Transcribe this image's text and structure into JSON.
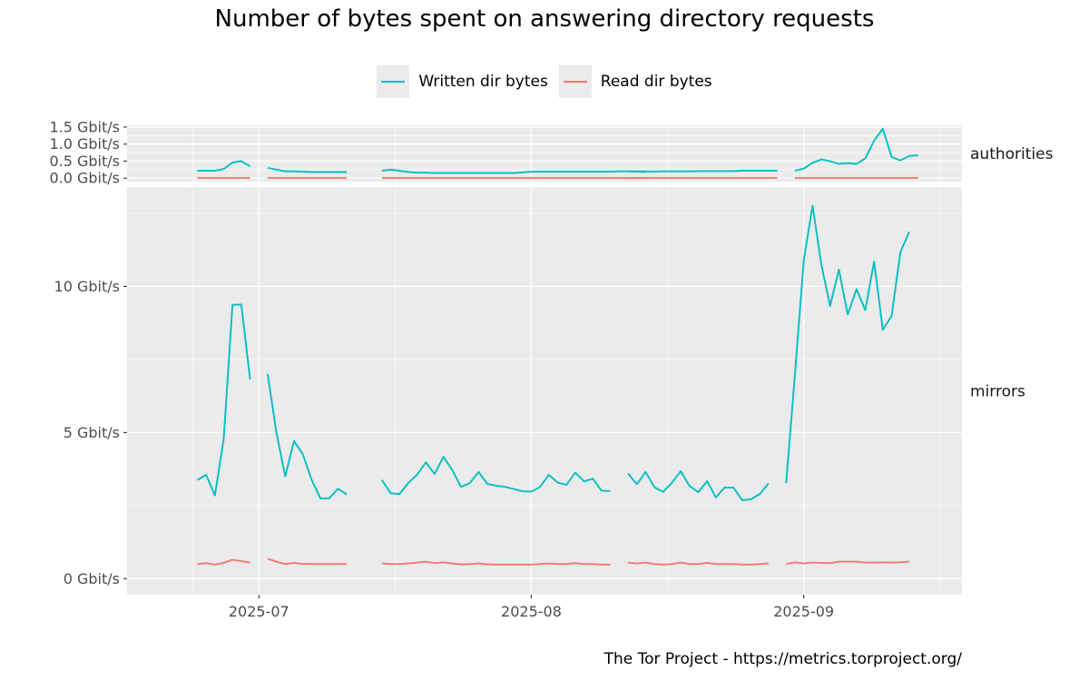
{
  "title": "Number of bytes spent on answering directory requests",
  "caption": "The Tor Project - https://metrics.torproject.org/",
  "legend": {
    "written_label": "Written dir bytes",
    "read_label": "Read dir bytes",
    "written_color": "#00bfc4",
    "read_color": "#f8766d"
  },
  "chart_data": {
    "type": "line",
    "x_type": "date",
    "x_ticks": [
      "2025-07-01",
      "2025-08-01",
      "2025-09-01"
    ],
    "x_tick_labels": [
      "2025-07",
      "2025-08",
      "2025-09"
    ],
    "xlim": [
      "2025-06-16",
      "2025-09-19"
    ],
    "colors": {
      "Written dir bytes": "#00bfc4",
      "Read dir bytes": "#f8766d"
    },
    "panels": [
      {
        "name": "authorities",
        "ylim": [
          -0.1,
          1.55
        ],
        "y_ticks": [
          0,
          0.5,
          1.0,
          1.5
        ],
        "y_tick_labels": [
          "0.0 Gbit/s",
          "0.5 Gbit/s",
          "1.0 Gbit/s",
          "1.5 Gbit/s"
        ],
        "series": [
          {
            "name": "Written dir bytes",
            "segments": [
              {
                "start": "2025-06-24",
                "values": [
                  0.22,
                  0.22,
                  0.22,
                  0.27,
                  0.46,
                  0.5,
                  0.35
                ]
              },
              {
                "start": "2025-07-02",
                "values": [
                  0.3,
                  0.25,
                  0.2,
                  0.2,
                  0.19,
                  0.18,
                  0.18,
                  0.18,
                  0.18,
                  0.18
                ]
              },
              {
                "start": "2025-07-15",
                "values": [
                  0.22,
                  0.25,
                  0.22,
                  0.18,
                  0.16,
                  0.16,
                  0.15,
                  0.15,
                  0.15,
                  0.15,
                  0.15,
                  0.15,
                  0.15,
                  0.15,
                  0.15,
                  0.15,
                  0.17,
                  0.19,
                  0.19,
                  0.19,
                  0.19,
                  0.19,
                  0.19,
                  0.19,
                  0.19,
                  0.19,
                  0.19,
                  0.2,
                  0.2,
                  0.19,
                  0.18
                ]
              },
              {
                "start": "2025-08-12",
                "values": [
                  0.2,
                  0.2,
                  0.2,
                  0.19,
                  0.2,
                  0.2,
                  0.2,
                  0.2,
                  0.21,
                  0.21,
                  0.21,
                  0.21,
                  0.21,
                  0.22,
                  0.22,
                  0.22,
                  0.22,
                  0.22
                ]
              },
              {
                "start": "2025-08-31",
                "values": [
                  0.22,
                  0.28,
                  0.45,
                  0.55,
                  0.5,
                  0.42,
                  0.44,
                  0.42,
                  0.58,
                  1.1,
                  1.45,
                  0.62,
                  0.52,
                  0.65,
                  0.67
                ]
              }
            ]
          },
          {
            "name": "Read dir bytes",
            "segments": [
              {
                "start": "2025-06-24",
                "values": [
                  0.01,
                  0.01,
                  0.01,
                  0.01,
                  0.01,
                  0.01,
                  0.01
                ]
              },
              {
                "start": "2025-07-02",
                "values": [
                  0.01,
                  0.01,
                  0.01,
                  0.01,
                  0.01,
                  0.01,
                  0.01,
                  0.01,
                  0.01,
                  0.01
                ]
              },
              {
                "start": "2025-07-15",
                "values": [
                  0.01,
                  0.01,
                  0.01,
                  0.01,
                  0.01,
                  0.01,
                  0.01,
                  0.01,
                  0.01,
                  0.01,
                  0.01,
                  0.01,
                  0.01,
                  0.01,
                  0.01,
                  0.01,
                  0.01,
                  0.01,
                  0.01,
                  0.01,
                  0.01,
                  0.01,
                  0.01,
                  0.01,
                  0.01,
                  0.01,
                  0.01,
                  0.01,
                  0.01,
                  0.01,
                  0.01
                ]
              },
              {
                "start": "2025-08-12",
                "values": [
                  0.01,
                  0.01,
                  0.01,
                  0.01,
                  0.01,
                  0.01,
                  0.01,
                  0.01,
                  0.01,
                  0.01,
                  0.01,
                  0.01,
                  0.01,
                  0.01,
                  0.01,
                  0.01,
                  0.01,
                  0.01
                ]
              },
              {
                "start": "2025-08-31",
                "values": [
                  0.01,
                  0.01,
                  0.01,
                  0.01,
                  0.01,
                  0.01,
                  0.01,
                  0.01,
                  0.01,
                  0.01,
                  0.01,
                  0.01,
                  0.01,
                  0.01,
                  0.01
                ]
              }
            ]
          }
        ]
      },
      {
        "name": "mirrors",
        "ylim": [
          -0.55,
          13.4
        ],
        "y_ticks": [
          0,
          5,
          10
        ],
        "y_tick_labels": [
          "0 Gbit/s",
          "5 Gbit/s",
          "10 Gbit/s"
        ],
        "series": [
          {
            "name": "Written dir bytes",
            "segments": [
              {
                "start": "2025-06-24",
                "values": [
                  3.38,
                  3.55,
                  2.85,
                  4.78,
                  9.37,
                  9.38,
                  6.82
                ]
              },
              {
                "start": "2025-07-02",
                "values": [
                  7.01,
                  5.0,
                  3.5,
                  4.71,
                  4.26,
                  3.38,
                  2.75,
                  2.75,
                  3.08,
                  2.88
                ]
              },
              {
                "start": "2025-07-15",
                "values": [
                  3.38,
                  2.92,
                  2.9,
                  3.27,
                  3.56,
                  3.98,
                  3.58,
                  4.17,
                  3.72,
                  3.14,
                  3.27,
                  3.65,
                  3.24,
                  3.18,
                  3.14,
                  3.07,
                  2.99,
                  2.98,
                  3.14,
                  3.55,
                  3.29,
                  3.21,
                  3.63,
                  3.33,
                  3.42,
                  3.01,
                  3.0
                ]
              },
              {
                "start": "2025-08-12",
                "values": [
                  3.6,
                  3.23,
                  3.65,
                  3.13,
                  2.97,
                  3.28,
                  3.68,
                  3.17,
                  2.96,
                  3.34,
                  2.78,
                  3.12,
                  3.12,
                  2.68,
                  2.72,
                  2.9,
                  3.26
                ]
              },
              {
                "start": "2025-08-30",
                "values": [
                  3.27,
                  7.0,
                  10.9,
                  12.76,
                  10.74,
                  9.33,
                  10.58,
                  9.04,
                  9.91,
                  9.19,
                  10.86,
                  8.51,
                  8.99,
                  11.17,
                  11.87
                ]
              }
            ]
          },
          {
            "name": "Read dir bytes",
            "segments": [
              {
                "start": "2025-06-24",
                "values": [
                  0.5,
                  0.53,
                  0.48,
                  0.54,
                  0.65,
                  0.6,
                  0.55
                ]
              },
              {
                "start": "2025-07-02",
                "values": [
                  0.68,
                  0.58,
                  0.5,
                  0.54,
                  0.51,
                  0.5,
                  0.5,
                  0.5,
                  0.5,
                  0.5
                ]
              },
              {
                "start": "2025-07-15",
                "values": [
                  0.52,
                  0.5,
                  0.5,
                  0.52,
                  0.55,
                  0.58,
                  0.53,
                  0.56,
                  0.52,
                  0.49,
                  0.5,
                  0.52,
                  0.49,
                  0.48,
                  0.48,
                  0.48,
                  0.48,
                  0.48,
                  0.5,
                  0.52,
                  0.5,
                  0.5,
                  0.53,
                  0.5,
                  0.5,
                  0.48,
                  0.48
                ]
              },
              {
                "start": "2025-08-12",
                "values": [
                  0.55,
                  0.52,
                  0.55,
                  0.5,
                  0.48,
                  0.5,
                  0.55,
                  0.5,
                  0.5,
                  0.54,
                  0.5,
                  0.5,
                  0.5,
                  0.48,
                  0.48,
                  0.5,
                  0.52
                ]
              },
              {
                "start": "2025-08-30",
                "values": [
                  0.5,
                  0.56,
                  0.52,
                  0.55,
                  0.54,
                  0.53,
                  0.58,
                  0.58,
                  0.58,
                  0.55,
                  0.55,
                  0.56,
                  0.55,
                  0.56,
                  0.58
                ]
              }
            ]
          }
        ]
      }
    ]
  }
}
